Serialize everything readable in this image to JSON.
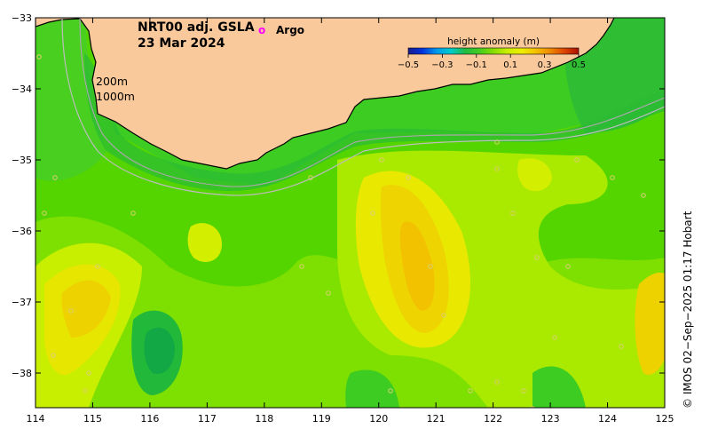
{
  "title": {
    "product": "NRT00 adj. GSLA",
    "date": "23 Mar 2024"
  },
  "legend": {
    "argo_symbol": "o",
    "argo_label": "Argo"
  },
  "isobaths": [
    "200m",
    "1000m"
  ],
  "colorbar": {
    "title": "height anomaly (m)",
    "ticks": [
      "−0.5",
      "−0.3",
      "−0.1",
      "0.1",
      "0.3",
      "0.5"
    ],
    "colors": [
      "#1a1a8c",
      "#0033dd",
      "#0099ee",
      "#00cccc",
      "#22bb44",
      "#44cc22",
      "#88dd00",
      "#ccee00",
      "#eeee00",
      "#f5c000",
      "#ee8800",
      "#dd4400",
      "#aa1100"
    ]
  },
  "axes": {
    "x_ticks": [
      "114",
      "115",
      "116",
      "117",
      "118",
      "119",
      "120",
      "121",
      "122",
      "123",
      "124",
      "125"
    ],
    "y_ticks": [
      "−33",
      "−34",
      "−35",
      "−36",
      "−37",
      "−38"
    ]
  },
  "credit": "© IMOS 02−Sep−2025 01:17 Hobart",
  "colors": {
    "land": "#f9c99b",
    "argo": "#ff00ff"
  }
}
